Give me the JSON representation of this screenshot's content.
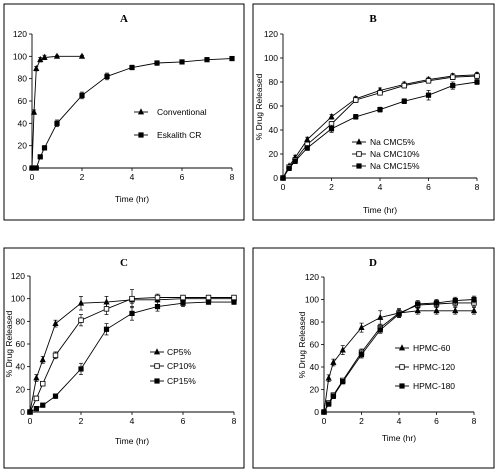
{
  "chart_data": [
    {
      "type": "line",
      "panel": "A",
      "xlabel": "Time (hr)",
      "ylabel": "",
      "xlim": [
        0,
        8
      ],
      "ylim": [
        0,
        120
      ],
      "xticks": [
        0,
        2,
        4,
        6,
        8
      ],
      "yticks": [
        0,
        20,
        40,
        60,
        80,
        100,
        120
      ],
      "legend": "right",
      "series": [
        {
          "name": "Conventional",
          "marker": "triangle",
          "x": [
            0,
            0.08,
            0.17,
            0.33,
            0.5,
            1,
            2
          ],
          "y": [
            0,
            50,
            89,
            97,
            99,
            100,
            100
          ],
          "err": [
            0,
            2,
            2,
            2,
            2,
            1,
            1
          ]
        },
        {
          "name": "Eskalith CR",
          "marker": "square",
          "x": [
            0,
            0.17,
            0.33,
            0.5,
            1,
            2,
            3,
            4,
            5,
            6,
            7,
            8
          ],
          "y": [
            0,
            0,
            10,
            18,
            40,
            65,
            82,
            90,
            94,
            95,
            97,
            98
          ],
          "err": [
            0,
            0,
            1,
            2,
            3,
            3,
            3,
            2,
            2,
            1,
            1,
            1
          ]
        }
      ]
    },
    {
      "type": "line",
      "panel": "B",
      "xlabel": "Time (hr)",
      "ylabel": "% Drug Released",
      "xlim": [
        0,
        8
      ],
      "ylim": [
        0,
        120
      ],
      "xticks": [
        0,
        2,
        4,
        6,
        8
      ],
      "yticks": [
        0,
        20,
        40,
        60,
        80,
        100,
        120
      ],
      "legend": "right",
      "series": [
        {
          "name": "Na CMC5%",
          "marker": "triangle",
          "x": [
            0,
            0.25,
            0.5,
            1,
            2,
            3,
            4,
            5,
            6,
            7,
            8
          ],
          "y": [
            0,
            10,
            17,
            32,
            51,
            66,
            73,
            78,
            82,
            85,
            86
          ],
          "err": [
            0,
            1,
            2,
            2,
            2,
            2,
            2,
            2,
            2,
            2,
            2
          ]
        },
        {
          "name": "Na CMC10%",
          "marker": "open-square",
          "x": [
            0,
            0.25,
            0.5,
            1,
            2,
            3,
            4,
            5,
            6,
            7,
            8
          ],
          "y": [
            0,
            9,
            15,
            28,
            45,
            65,
            71,
            77,
            81,
            84,
            85
          ],
          "err": [
            0,
            1,
            2,
            2,
            2,
            2,
            2,
            2,
            2,
            2,
            2
          ]
        },
        {
          "name": "Na CMC15%",
          "marker": "square",
          "x": [
            0,
            0.25,
            0.5,
            1,
            2,
            3,
            4,
            5,
            6,
            7,
            8
          ],
          "y": [
            0,
            8,
            14,
            25,
            41,
            51,
            57,
            64,
            69,
            77,
            80
          ],
          "err": [
            0,
            1,
            2,
            2,
            3,
            2,
            2,
            2,
            4,
            3,
            2
          ]
        }
      ]
    },
    {
      "type": "line",
      "panel": "C",
      "xlabel": "Time (hr)",
      "ylabel": "% Drug Released",
      "xlim": [
        0,
        8
      ],
      "ylim": [
        0,
        120
      ],
      "xticks": [
        0,
        2,
        4,
        6,
        8
      ],
      "yticks": [
        0,
        20,
        40,
        60,
        80,
        100,
        120
      ],
      "legend": "right",
      "series": [
        {
          "name": "CP5%",
          "marker": "triangle",
          "x": [
            0,
            0.25,
            0.5,
            1,
            2,
            3,
            4,
            5,
            6,
            7,
            8
          ],
          "y": [
            0,
            30,
            46,
            78,
            96,
            97,
            99,
            99,
            100,
            100,
            100
          ],
          "err": [
            0,
            3,
            3,
            3,
            6,
            5,
            3,
            2,
            2,
            2,
            2
          ]
        },
        {
          "name": "CP10%",
          "marker": "open-square",
          "x": [
            0,
            0.25,
            0.5,
            1,
            2,
            3,
            4,
            5,
            6,
            7,
            8
          ],
          "y": [
            0,
            12,
            25,
            50,
            81,
            91,
            100,
            101,
            101,
            101,
            101
          ],
          "err": [
            0,
            2,
            2,
            3,
            5,
            5,
            8,
            3,
            2,
            2,
            2
          ]
        },
        {
          "name": "CP15%",
          "marker": "square",
          "x": [
            0,
            0.25,
            0.5,
            1,
            2,
            3,
            4,
            5,
            6,
            7,
            8
          ],
          "y": [
            0,
            3,
            6,
            14,
            38,
            73,
            87,
            93,
            96,
            97,
            97
          ],
          "err": [
            0,
            1,
            1,
            2,
            5,
            5,
            6,
            4,
            3,
            2,
            2
          ]
        }
      ]
    },
    {
      "type": "line",
      "panel": "D",
      "xlabel": "Time (hr)",
      "ylabel": "% Drug Released",
      "xlim": [
        0,
        8
      ],
      "ylim": [
        0,
        120
      ],
      "xticks": [
        0,
        2,
        4,
        6,
        8
      ],
      "yticks": [
        0,
        20,
        40,
        60,
        80,
        100,
        120
      ],
      "legend": "right",
      "series": [
        {
          "name": "HPMC-60",
          "marker": "triangle",
          "x": [
            0,
            0.25,
            0.5,
            1,
            2,
            3,
            4,
            5,
            6,
            7,
            8
          ],
          "y": [
            0,
            30,
            44,
            55,
            75,
            84,
            88,
            90,
            90,
            90,
            90
          ],
          "err": [
            0,
            3,
            3,
            4,
            4,
            6,
            4,
            3,
            3,
            3,
            3
          ]
        },
        {
          "name": "HPMC-120",
          "marker": "open-square",
          "x": [
            0,
            0.25,
            0.5,
            1,
            2,
            3,
            4,
            5,
            6,
            7,
            8
          ],
          "y": [
            0,
            8,
            15,
            28,
            53,
            75,
            88,
            95,
            96,
            97,
            97
          ],
          "err": [
            0,
            1,
            2,
            2,
            3,
            3,
            3,
            3,
            3,
            3,
            3
          ]
        },
        {
          "name": "HPMC-180",
          "marker": "square",
          "x": [
            0,
            0.25,
            0.5,
            1,
            2,
            3,
            4,
            5,
            6,
            7,
            8
          ],
          "y": [
            0,
            7,
            14,
            27,
            51,
            73,
            87,
            96,
            97,
            99,
            100
          ],
          "err": [
            0,
            1,
            2,
            2,
            3,
            3,
            3,
            3,
            3,
            3,
            3
          ]
        }
      ]
    }
  ]
}
